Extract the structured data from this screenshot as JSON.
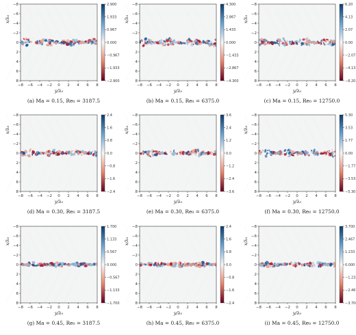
{
  "figure": {
    "x_axis_label": "y/λ₀",
    "y_axis_label": "x/λ₀",
    "x_ticks": [
      "−8",
      "−6",
      "−4",
      "−2",
      "0",
      "2",
      "4",
      "6",
      "8"
    ],
    "y_ticks": [
      "−8",
      "−6",
      "−4",
      "−2",
      "0",
      "2",
      "4",
      "6",
      "8"
    ],
    "colormap": {
      "positive": "#0b3b6e",
      "mid": "#f7f7f7",
      "negative": "#67001f"
    },
    "panels": [
      {
        "caption": "(a) Ma = 0.15, Re₀ = 3187.5",
        "ma": "0.15",
        "re": "3187.5",
        "letter": "(a)",
        "colorbar_ticks": [
          "2.900",
          "1.933",
          "0.967",
          "0.000",
          "−0.967",
          "−1.933",
          "−2.900"
        ],
        "band_halfwidth": 0.75,
        "seed": 11
      },
      {
        "caption": "(b) Ma = 0.15, Re₀ = 6375.0",
        "ma": "0.15",
        "re": "6375.0",
        "letter": "(b)",
        "colorbar_ticks": [
          "4.300",
          "2.867",
          "1.433",
          "0.000",
          "−1.433",
          "−2.867",
          "−4.300"
        ],
        "band_halfwidth": 0.75,
        "seed": 23
      },
      {
        "caption": "(c) Ma = 0.15, Re₀ = 12750.0",
        "ma": "0.15",
        "re": "12750.0",
        "letter": "(c)",
        "colorbar_ticks": [
          "6.20",
          "4.13",
          "2.07",
          "0.00",
          "−2.07",
          "−4.13",
          "−6.20"
        ],
        "band_halfwidth": 0.8,
        "seed": 37
      },
      {
        "caption": "(d) Ma = 0.30, Re₀ = 3187.5",
        "ma": "0.30",
        "re": "3187.5",
        "letter": "(d)",
        "colorbar_ticks": [
          "2.4",
          "1.6",
          "0.8",
          "0.0",
          "−0.8",
          "−1.6",
          "−2.4"
        ],
        "band_halfwidth": 0.7,
        "seed": 41
      },
      {
        "caption": "(e) Ma = 0.30, Re₀ = 6375.0",
        "ma": "0.30",
        "re": "6375.0",
        "letter": "(e)",
        "colorbar_ticks": [
          "3.6",
          "2.4",
          "1.2",
          "0.0",
          "−1.2",
          "−2.4",
          "−3.6"
        ],
        "band_halfwidth": 0.7,
        "seed": 53
      },
      {
        "caption": "(f) Ma = 0.30, Re₀ = 12750.0",
        "ma": "0.30",
        "re": "12750.0",
        "letter": "(f)",
        "colorbar_ticks": [
          "5.30",
          "3.53",
          "1.77",
          "0.00",
          "−1.77",
          "−3.53",
          "−5.30"
        ],
        "band_halfwidth": 0.75,
        "seed": 67
      },
      {
        "caption": "(g) Ma = 0.45, Re₀ = 3187.5",
        "ma": "0.45",
        "re": "3187.5",
        "letter": "(g)",
        "colorbar_ticks": [
          "1.700",
          "1.133",
          "0.567",
          "0.000",
          "−0.567",
          "−1.133",
          "−1.700"
        ],
        "band_halfwidth": 0.45,
        "seed": 71
      },
      {
        "caption": "(h) Ma = 0.45, Re₀ = 6375.0",
        "ma": "0.45",
        "re": "6375.0",
        "letter": "(h)",
        "colorbar_ticks": [
          "2.4",
          "1.6",
          "0.8",
          "0.0",
          "−0.8",
          "−1.6",
          "−2.4"
        ],
        "band_halfwidth": 0.5,
        "seed": 83
      },
      {
        "caption": "(i) Ma = 0.45, Re₀ = 12750.0",
        "ma": "0.45",
        "re": "12750.0",
        "letter": "(i)",
        "colorbar_ticks": [
          "3.700",
          "2.467",
          "1.233",
          "0.000",
          "−1.233",
          "−2.467",
          "−3.700"
        ],
        "band_halfwidth": 0.5,
        "seed": 97
      }
    ]
  }
}
